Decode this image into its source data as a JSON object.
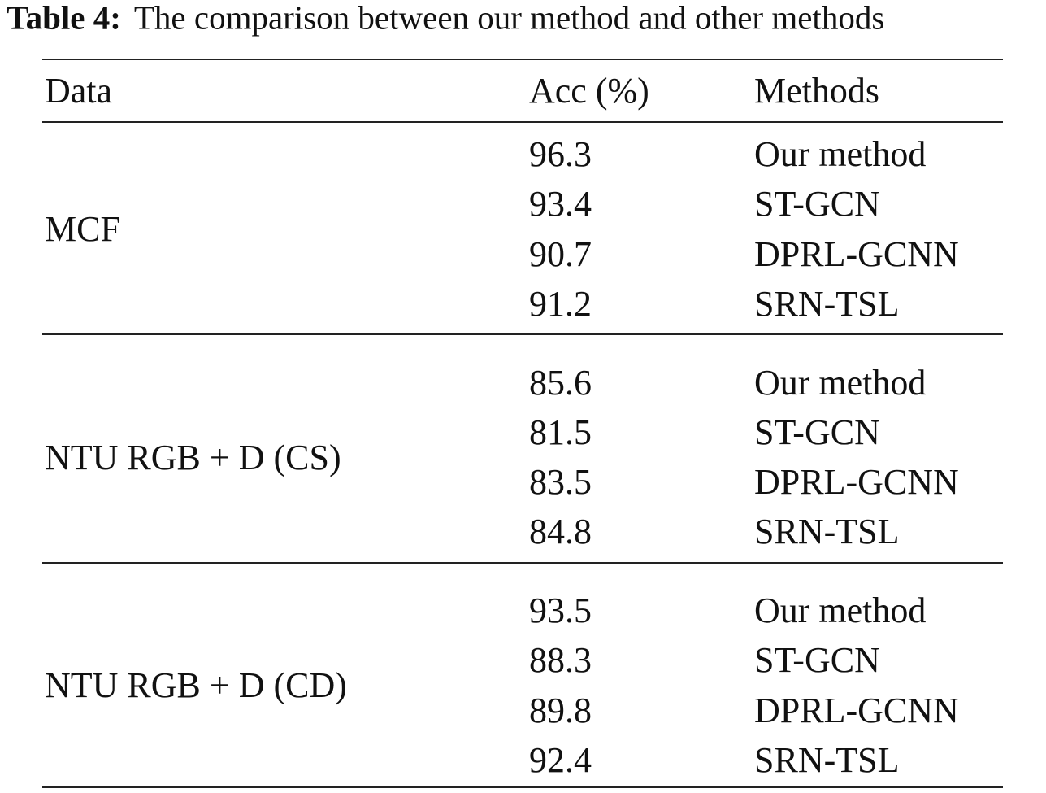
{
  "caption": {
    "label": "Table 4:",
    "text": "The comparison between our method and other methods"
  },
  "table": {
    "header": [
      "Data",
      "Acc (%)",
      "Methods"
    ],
    "groups": [
      {
        "data": "MCF",
        "rows": [
          [
            96.3,
            "Our method"
          ],
          [
            93.4,
            "ST-GCN"
          ],
          [
            90.7,
            "DPRL-GCNN"
          ],
          [
            91.2,
            "SRN-TSL"
          ]
        ]
      },
      {
        "data": "NTU RGB + D (CS)",
        "rows": [
          [
            85.6,
            "Our method"
          ],
          [
            81.5,
            "ST-GCN"
          ],
          [
            83.5,
            "DPRL-GCNN"
          ],
          [
            84.8,
            "SRN-TSL"
          ]
        ]
      },
      {
        "data": "NTU RGB + D (CD)",
        "rows": [
          [
            93.5,
            "Our method"
          ],
          [
            88.3,
            "ST-GCN"
          ],
          [
            89.8,
            "DPRL-GCNN"
          ],
          [
            92.4,
            "SRN-TSL"
          ]
        ]
      }
    ]
  }
}
